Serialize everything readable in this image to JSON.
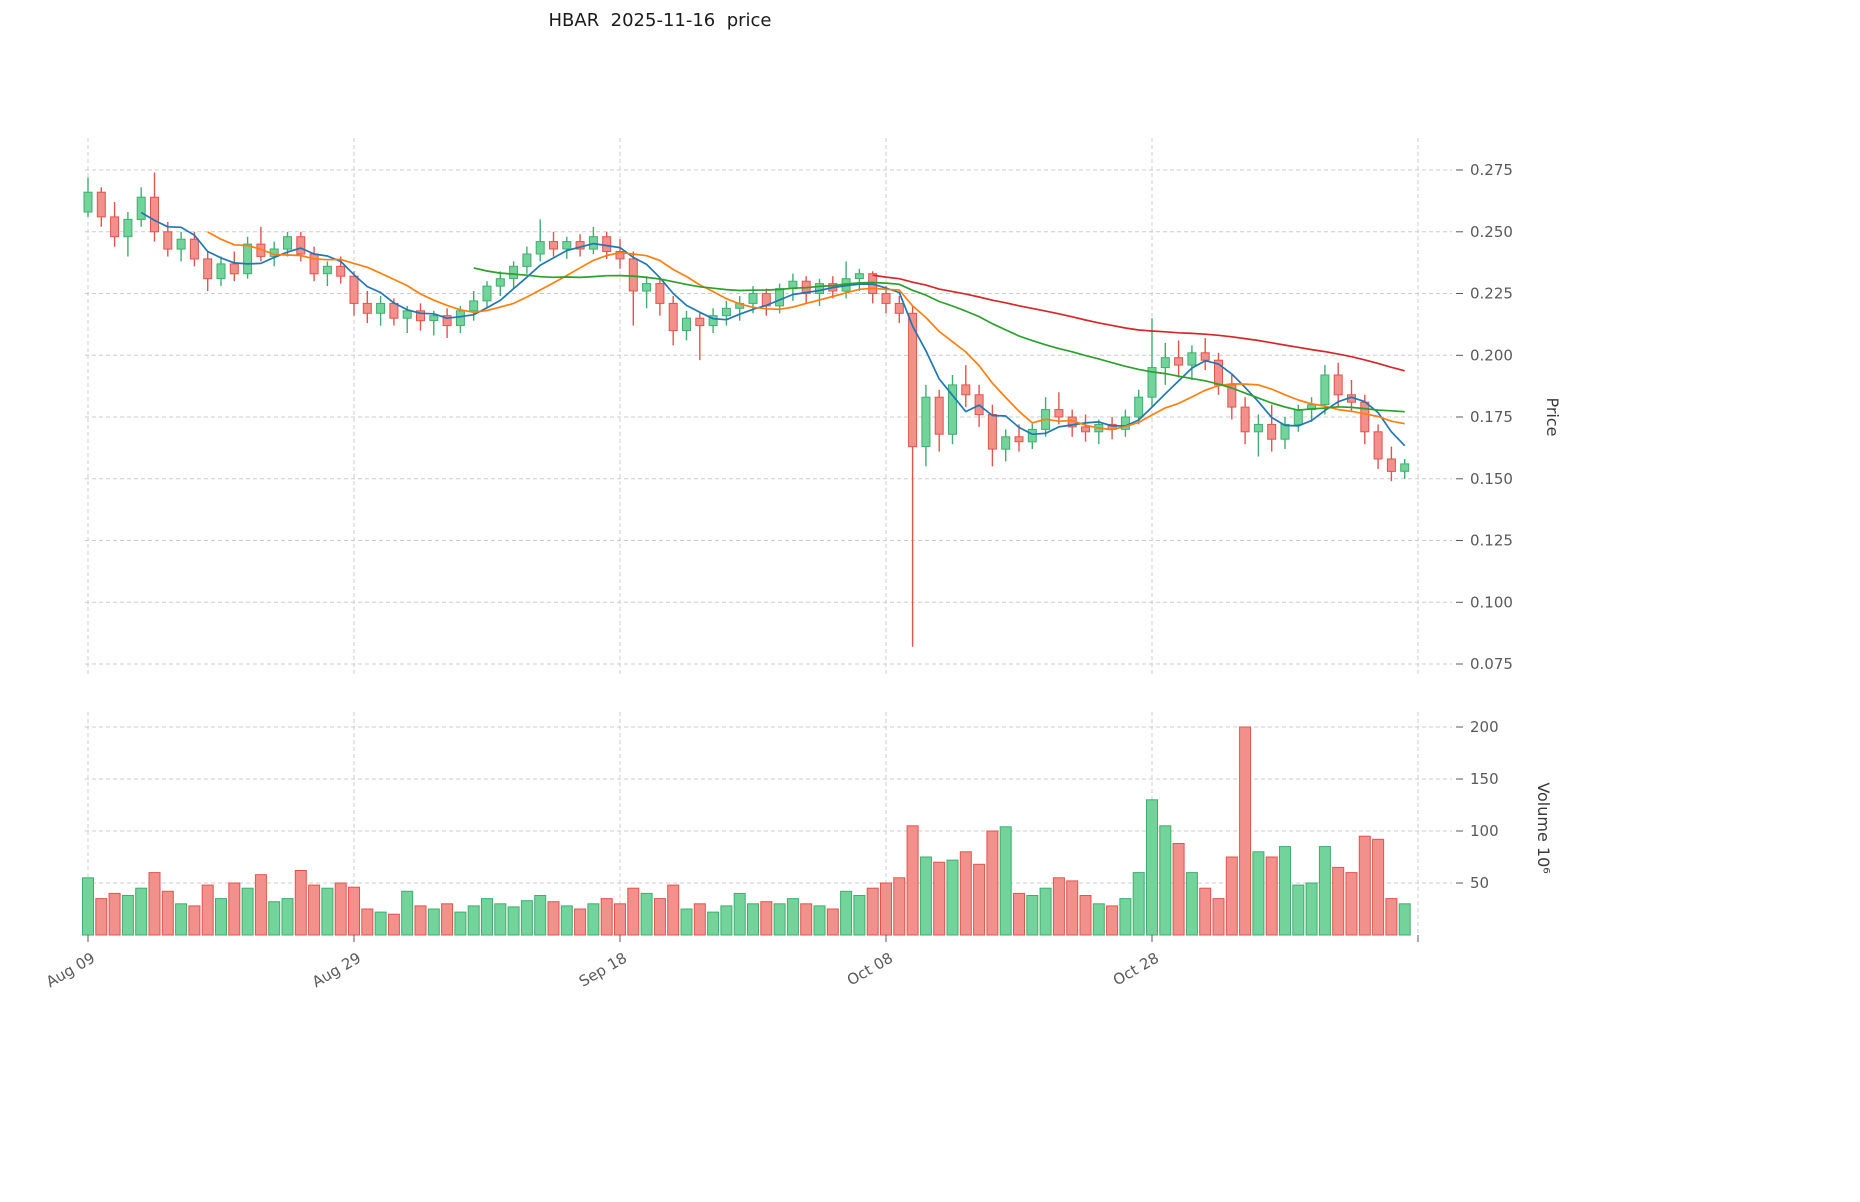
{
  "title": "HBAR  2025-11-16  price",
  "axes": {
    "price_axis_label": "Price",
    "volume_axis_label": "Volume  10⁶",
    "price_ticks": [
      "0.275",
      "0.250",
      "0.225",
      "0.200",
      "0.175",
      "0.150",
      "0.125",
      "0.100",
      "0.075"
    ],
    "volume_ticks": [
      "200",
      "150",
      "100",
      "50"
    ],
    "x_ticks": [
      {
        "index": 0,
        "label": "Aug 09"
      },
      {
        "index": 20,
        "label": "Aug 29"
      },
      {
        "index": 40,
        "label": "Sep 18"
      },
      {
        "index": 60,
        "label": "Oct 08"
      },
      {
        "index": 80,
        "label": "Oct 28"
      },
      {
        "index": 100,
        "label": ""
      }
    ]
  },
  "colors": {
    "up_fill": "#73d49b",
    "up_edge": "#3eae6f",
    "down_fill": "#f2918c",
    "down_edge": "#e0544c",
    "ma_colors": [
      "#1f77b4",
      "#ff7f0e",
      "#2ca02c",
      "#d62728"
    ],
    "grid": "#cccccc",
    "tick_text": "#595959",
    "title_text": "#1a1a1a",
    "background": "#ffffff"
  },
  "chart_data": {
    "type": "candlestick",
    "symbol": "HBAR",
    "as_of_date": "2025-11-16",
    "price_axis_range": [
      0.06,
      0.29
    ],
    "volume_axis_range_millions": [
      0,
      215
    ],
    "moving_average_windows": [
      5,
      10,
      30,
      60
    ],
    "legend_position": "none",
    "grid": "dashed",
    "dates": [
      "2025-08-09",
      "2025-08-10",
      "2025-08-11",
      "2025-08-12",
      "2025-08-13",
      "2025-08-14",
      "2025-08-15",
      "2025-08-16",
      "2025-08-17",
      "2025-08-18",
      "2025-08-19",
      "2025-08-20",
      "2025-08-21",
      "2025-08-22",
      "2025-08-23",
      "2025-08-24",
      "2025-08-25",
      "2025-08-26",
      "2025-08-27",
      "2025-08-28",
      "2025-08-29",
      "2025-08-30",
      "2025-08-31",
      "2025-09-01",
      "2025-09-02",
      "2025-09-03",
      "2025-09-04",
      "2025-09-05",
      "2025-09-06",
      "2025-09-07",
      "2025-09-08",
      "2025-09-09",
      "2025-09-10",
      "2025-09-11",
      "2025-09-12",
      "2025-09-13",
      "2025-09-14",
      "2025-09-15",
      "2025-09-16",
      "2025-09-17",
      "2025-09-18",
      "2025-09-19",
      "2025-09-20",
      "2025-09-21",
      "2025-09-22",
      "2025-09-23",
      "2025-09-24",
      "2025-09-25",
      "2025-09-26",
      "2025-09-27",
      "2025-09-28",
      "2025-09-29",
      "2025-09-30",
      "2025-10-01",
      "2025-10-02",
      "2025-10-03",
      "2025-10-04",
      "2025-10-05",
      "2025-10-06",
      "2025-10-07",
      "2025-10-08",
      "2025-10-09",
      "2025-10-10",
      "2025-10-11",
      "2025-10-12",
      "2025-10-13",
      "2025-10-14",
      "2025-10-15",
      "2025-10-16",
      "2025-10-17",
      "2025-10-18",
      "2025-10-19",
      "2025-10-20",
      "2025-10-21",
      "2025-10-22",
      "2025-10-23",
      "2025-10-24",
      "2025-10-25",
      "2025-10-26",
      "2025-10-27",
      "2025-10-28",
      "2025-10-29",
      "2025-10-30",
      "2025-10-31",
      "2025-11-01",
      "2025-11-02",
      "2025-11-03",
      "2025-11-04",
      "2025-11-05",
      "2025-11-06",
      "2025-11-07",
      "2025-11-08",
      "2025-11-09",
      "2025-11-10",
      "2025-11-11",
      "2025-11-12",
      "2025-11-13",
      "2025-11-14",
      "2025-11-15",
      "2025-11-16"
    ],
    "ohlc": [
      [
        0.258,
        0.272,
        0.256,
        0.266
      ],
      [
        0.266,
        0.268,
        0.252,
        0.256
      ],
      [
        0.256,
        0.262,
        0.244,
        0.248
      ],
      [
        0.248,
        0.258,
        0.24,
        0.255
      ],
      [
        0.255,
        0.268,
        0.252,
        0.264
      ],
      [
        0.264,
        0.274,
        0.246,
        0.25
      ],
      [
        0.25,
        0.254,
        0.24,
        0.243
      ],
      [
        0.243,
        0.25,
        0.238,
        0.247
      ],
      [
        0.247,
        0.25,
        0.236,
        0.239
      ],
      [
        0.239,
        0.242,
        0.226,
        0.231
      ],
      [
        0.231,
        0.24,
        0.228,
        0.237
      ],
      [
        0.237,
        0.242,
        0.23,
        0.233
      ],
      [
        0.233,
        0.248,
        0.231,
        0.245
      ],
      [
        0.245,
        0.252,
        0.238,
        0.24
      ],
      [
        0.24,
        0.246,
        0.236,
        0.243
      ],
      [
        0.243,
        0.25,
        0.24,
        0.248
      ],
      [
        0.248,
        0.25,
        0.238,
        0.241
      ],
      [
        0.241,
        0.244,
        0.23,
        0.233
      ],
      [
        0.233,
        0.238,
        0.228,
        0.236
      ],
      [
        0.236,
        0.24,
        0.229,
        0.232
      ],
      [
        0.232,
        0.234,
        0.216,
        0.221
      ],
      [
        0.221,
        0.226,
        0.213,
        0.217
      ],
      [
        0.217,
        0.224,
        0.212,
        0.221
      ],
      [
        0.221,
        0.223,
        0.212,
        0.215
      ],
      [
        0.215,
        0.22,
        0.209,
        0.218
      ],
      [
        0.218,
        0.221,
        0.21,
        0.214
      ],
      [
        0.214,
        0.218,
        0.208,
        0.216
      ],
      [
        0.216,
        0.219,
        0.207,
        0.212
      ],
      [
        0.212,
        0.22,
        0.209,
        0.218
      ],
      [
        0.218,
        0.226,
        0.214,
        0.222
      ],
      [
        0.222,
        0.23,
        0.219,
        0.228
      ],
      [
        0.228,
        0.234,
        0.224,
        0.231
      ],
      [
        0.231,
        0.238,
        0.227,
        0.236
      ],
      [
        0.236,
        0.244,
        0.233,
        0.241
      ],
      [
        0.241,
        0.255,
        0.238,
        0.246
      ],
      [
        0.246,
        0.25,
        0.24,
        0.243
      ],
      [
        0.243,
        0.248,
        0.239,
        0.246
      ],
      [
        0.246,
        0.249,
        0.24,
        0.243
      ],
      [
        0.243,
        0.252,
        0.241,
        0.248
      ],
      [
        0.248,
        0.25,
        0.239,
        0.242
      ],
      [
        0.242,
        0.247,
        0.235,
        0.239
      ],
      [
        0.239,
        0.242,
        0.212,
        0.226
      ],
      [
        0.226,
        0.232,
        0.219,
        0.229
      ],
      [
        0.229,
        0.231,
        0.216,
        0.221
      ],
      [
        0.221,
        0.224,
        0.204,
        0.21
      ],
      [
        0.21,
        0.218,
        0.206,
        0.215
      ],
      [
        0.215,
        0.217,
        0.198,
        0.212
      ],
      [
        0.212,
        0.219,
        0.209,
        0.216
      ],
      [
        0.216,
        0.222,
        0.212,
        0.219
      ],
      [
        0.219,
        0.224,
        0.214,
        0.221
      ],
      [
        0.221,
        0.228,
        0.217,
        0.225
      ],
      [
        0.225,
        0.227,
        0.216,
        0.22
      ],
      [
        0.22,
        0.229,
        0.217,
        0.227
      ],
      [
        0.227,
        0.233,
        0.222,
        0.23
      ],
      [
        0.23,
        0.232,
        0.221,
        0.225
      ],
      [
        0.225,
        0.231,
        0.22,
        0.229
      ],
      [
        0.229,
        0.232,
        0.223,
        0.226
      ],
      [
        0.226,
        0.238,
        0.223,
        0.231
      ],
      [
        0.231,
        0.235,
        0.226,
        0.233
      ],
      [
        0.233,
        0.234,
        0.221,
        0.225
      ],
      [
        0.225,
        0.228,
        0.217,
        0.221
      ],
      [
        0.221,
        0.224,
        0.213,
        0.217
      ],
      [
        0.217,
        0.22,
        0.082,
        0.163
      ],
      [
        0.163,
        0.188,
        0.155,
        0.183
      ],
      [
        0.183,
        0.186,
        0.161,
        0.168
      ],
      [
        0.168,
        0.192,
        0.164,
        0.188
      ],
      [
        0.188,
        0.196,
        0.179,
        0.184
      ],
      [
        0.184,
        0.188,
        0.171,
        0.176
      ],
      [
        0.176,
        0.18,
        0.155,
        0.162
      ],
      [
        0.162,
        0.17,
        0.157,
        0.167
      ],
      [
        0.167,
        0.172,
        0.161,
        0.165
      ],
      [
        0.165,
        0.173,
        0.162,
        0.17
      ],
      [
        0.17,
        0.183,
        0.167,
        0.178
      ],
      [
        0.178,
        0.185,
        0.172,
        0.175
      ],
      [
        0.175,
        0.178,
        0.167,
        0.171
      ],
      [
        0.171,
        0.176,
        0.165,
        0.169
      ],
      [
        0.169,
        0.174,
        0.164,
        0.172
      ],
      [
        0.172,
        0.175,
        0.166,
        0.17
      ],
      [
        0.17,
        0.178,
        0.167,
        0.175
      ],
      [
        0.175,
        0.186,
        0.172,
        0.183
      ],
      [
        0.183,
        0.215,
        0.179,
        0.195
      ],
      [
        0.195,
        0.205,
        0.188,
        0.199
      ],
      [
        0.199,
        0.206,
        0.191,
        0.196
      ],
      [
        0.196,
        0.204,
        0.19,
        0.201
      ],
      [
        0.201,
        0.207,
        0.194,
        0.198
      ],
      [
        0.198,
        0.201,
        0.184,
        0.188
      ],
      [
        0.188,
        0.192,
        0.174,
        0.179
      ],
      [
        0.179,
        0.183,
        0.164,
        0.169
      ],
      [
        0.169,
        0.176,
        0.159,
        0.172
      ],
      [
        0.172,
        0.18,
        0.161,
        0.166
      ],
      [
        0.166,
        0.175,
        0.162,
        0.172
      ],
      [
        0.172,
        0.18,
        0.169,
        0.178
      ],
      [
        0.178,
        0.183,
        0.173,
        0.18
      ],
      [
        0.18,
        0.196,
        0.176,
        0.192
      ],
      [
        0.192,
        0.197,
        0.179,
        0.184
      ],
      [
        0.184,
        0.19,
        0.177,
        0.181
      ],
      [
        0.181,
        0.184,
        0.164,
        0.169
      ],
      [
        0.169,
        0.172,
        0.154,
        0.158
      ],
      [
        0.158,
        0.163,
        0.149,
        0.153
      ],
      [
        0.153,
        0.158,
        0.15,
        0.156
      ]
    ],
    "volume_millions": [
      55,
      35,
      40,
      38,
      45,
      60,
      42,
      30,
      28,
      48,
      35,
      50,
      45,
      58,
      32,
      35,
      62,
      48,
      45,
      50,
      46,
      25,
      22,
      20,
      42,
      28,
      25,
      30,
      22,
      28,
      35,
      30,
      27,
      33,
      38,
      32,
      28,
      25,
      30,
      35,
      30,
      45,
      40,
      35,
      48,
      25,
      30,
      22,
      28,
      40,
      30,
      32,
      30,
      35,
      30,
      28,
      25,
      42,
      38,
      45,
      50,
      55,
      105,
      75,
      70,
      72,
      80,
      68,
      100,
      104,
      40,
      38,
      45,
      55,
      52,
      38,
      30,
      28,
      35,
      60,
      130,
      105,
      88,
      60,
      45,
      35,
      75,
      200,
      80,
      75,
      85,
      48,
      50,
      85,
      65,
      60,
      95,
      92,
      35,
      30
    ]
  }
}
